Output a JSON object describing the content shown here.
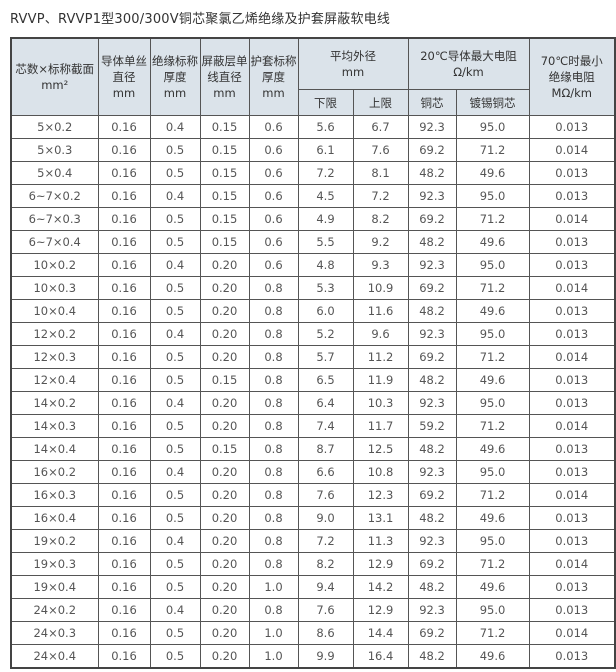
{
  "title": "RVVP、RVVP1型300/300V铜芯聚氯乙烯绝缘及护套屏蔽软电线",
  "headers": {
    "spec": [
      "芯数×标称截面",
      "mm²"
    ],
    "wire_dia": [
      "导体单丝",
      "直径",
      "mm"
    ],
    "insul": [
      "绝缘标称",
      "厚度",
      "mm"
    ],
    "shield": [
      "屏蔽层单",
      "线直径",
      "mm"
    ],
    "sheath": [
      "护套标称",
      "厚度",
      "mm"
    ],
    "od": [
      "平均外径",
      "mm"
    ],
    "od_low": "下限",
    "od_high": "上限",
    "res": [
      "20℃导体最大电阻",
      "Ω/km"
    ],
    "res_cu": "铜芯",
    "res_tin": "镀锡铜芯",
    "ins_res": [
      "70℃时最小",
      "绝缘电阻",
      "MΩ/km"
    ]
  },
  "rows": [
    [
      "5×0.2",
      "0.16",
      "0.4",
      "0.15",
      "0.6",
      "5.6",
      "6.7",
      "92.3",
      "95.0",
      "0.013"
    ],
    [
      "5×0.3",
      "0.16",
      "0.5",
      "0.15",
      "0.6",
      "6.1",
      "7.6",
      "69.2",
      "71.2",
      "0.014"
    ],
    [
      "5×0.4",
      "0.16",
      "0.5",
      "0.15",
      "0.6",
      "7.2",
      "8.1",
      "48.2",
      "49.6",
      "0.013"
    ],
    [
      "6~7×0.2",
      "0.16",
      "0.4",
      "0.15",
      "0.6",
      "4.5",
      "7.2",
      "92.3",
      "95.0",
      "0.013"
    ],
    [
      "6~7×0.3",
      "0.16",
      "0.5",
      "0.15",
      "0.6",
      "4.9",
      "8.2",
      "69.2",
      "71.2",
      "0.014"
    ],
    [
      "6~7×0.4",
      "0.16",
      "0.5",
      "0.15",
      "0.6",
      "5.5",
      "9.2",
      "48.2",
      "49.6",
      "0.013"
    ],
    [
      "10×0.2",
      "0.16",
      "0.4",
      "0.20",
      "0.6",
      "4.8",
      "9.3",
      "92.3",
      "95.0",
      "0.013"
    ],
    [
      "10×0.3",
      "0.16",
      "0.5",
      "0.20",
      "0.8",
      "5.3",
      "10.9",
      "69.2",
      "71.2",
      "0.014"
    ],
    [
      "10×0.4",
      "0.16",
      "0.5",
      "0.20",
      "0.8",
      "6.0",
      "11.6",
      "48.2",
      "49.6",
      "0.013"
    ],
    [
      "12×0.2",
      "0.16",
      "0.4",
      "0.20",
      "0.8",
      "5.2",
      "9.6",
      "92.3",
      "95.0",
      "0.013"
    ],
    [
      "12×0.3",
      "0.16",
      "0.5",
      "0.20",
      "0.8",
      "5.7",
      "11.2",
      "69.2",
      "71.2",
      "0.014"
    ],
    [
      "12×0.4",
      "0.16",
      "0.5",
      "0.15",
      "0.8",
      "6.5",
      "11.9",
      "48.2",
      "49.6",
      "0.013"
    ],
    [
      "14×0.2",
      "0.16",
      "0.4",
      "0.20",
      "0.8",
      "6.4",
      "10.3",
      "92.3",
      "95.0",
      "0.013"
    ],
    [
      "14×0.3",
      "0.16",
      "0.5",
      "0.20",
      "0.8",
      "7.4",
      "11.7",
      "59.2",
      "71.2",
      "0.014"
    ],
    [
      "14×0.4",
      "0.16",
      "0.5",
      "0.15",
      "0.8",
      "8.7",
      "12.5",
      "48.2",
      "49.6",
      "0.013"
    ],
    [
      "16×0.2",
      "0.16",
      "0.4",
      "0.20",
      "0.8",
      "6.6",
      "10.8",
      "92.3",
      "95.0",
      "0.013"
    ],
    [
      "16×0.3",
      "0.16",
      "0.5",
      "0.20",
      "0.8",
      "7.6",
      "12.3",
      "69.2",
      "71.2",
      "0.014"
    ],
    [
      "16×0.4",
      "0.16",
      "0.5",
      "0.20",
      "0.8",
      "9.0",
      "13.1",
      "48.2",
      "49.6",
      "0.013"
    ],
    [
      "19×0.2",
      "0.16",
      "0.4",
      "0.20",
      "0.8",
      "7.2",
      "11.3",
      "92.3",
      "95.0",
      "0.013"
    ],
    [
      "19×0.3",
      "0.16",
      "0.5",
      "0.20",
      "0.8",
      "8.2",
      "12.9",
      "69.2",
      "71.2",
      "0.014"
    ],
    [
      "19×0.4",
      "0.16",
      "0.5",
      "0.20",
      "1.0",
      "9.4",
      "14.2",
      "48.2",
      "49.6",
      "0.013"
    ],
    [
      "24×0.2",
      "0.16",
      "0.4",
      "0.20",
      "0.8",
      "7.6",
      "12.9",
      "92.3",
      "95.0",
      "0.013"
    ],
    [
      "24×0.3",
      "0.16",
      "0.5",
      "0.20",
      "1.0",
      "8.6",
      "14.4",
      "69.2",
      "71.2",
      "0.014"
    ],
    [
      "24×0.4",
      "0.16",
      "0.5",
      "0.20",
      "1.0",
      "9.9",
      "16.4",
      "48.2",
      "49.6",
      "0.013"
    ]
  ]
}
